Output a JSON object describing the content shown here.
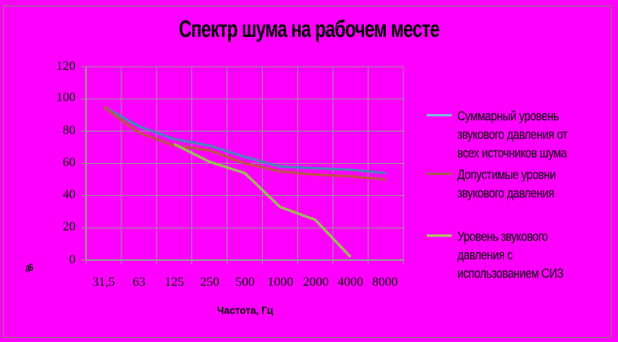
{
  "window": {
    "background": "#FF00FF",
    "border_color": "#85856F"
  },
  "title": "Спектр шума на рабочем месте",
  "y_axis": {
    "ticks": [
      "120",
      "100",
      "80",
      "60",
      "40",
      "20",
      "0"
    ],
    "unit_label": "дБ"
  },
  "x_axis": {
    "ticks": [
      "31,5",
      "63",
      "125",
      "250",
      "500",
      "1000",
      "2000",
      "4000",
      "8000"
    ],
    "title": "Частота, Гц"
  },
  "legend": {
    "items": [
      {
        "label": "Суммарный уровень звукового давления от всех источников шума",
        "lines": [
          "Суммарный уровень",
          "звукового давления  от",
          "всех источников шума"
        ],
        "key_color": "#7FB2D9"
      },
      {
        "label": "Допустимые уровни звукового давления",
        "lines": [
          "Допустимые уровни",
          "звукового давления",
          ""
        ],
        "key_color": "#A65A50"
      },
      {
        "label": "Уровень звукового давления с использованием СИЗ",
        "lines": [
          "Уровень звукового",
          "давления с",
          "использованием СИЗ"
        ],
        "key_color": "#ADBE6B"
      }
    ]
  },
  "chart_data": {
    "type": "line",
    "title": "Спектр шума на рабочем месте",
    "xlabel": "Частота, Гц",
    "ylabel": "дБ",
    "ylim": [
      0,
      120
    ],
    "y_step": 20,
    "grid": true,
    "legend_position": "right",
    "background_color": "#FF00FF",
    "gridline_color": "#969696",
    "categories": [
      "31,5",
      "63",
      "125",
      "250",
      "500",
      "1000",
      "2000",
      "4000",
      "8000"
    ],
    "series": [
      {
        "name": "Суммарный уровень звукового давления от всех источников шума",
        "color": "#4F81BD",
        "values": [
          95,
          83,
          75,
          71,
          64,
          58,
          57,
          56,
          54
        ]
      },
      {
        "name": "Допустимые уровни звукового давления",
        "color": "#C0504D",
        "values": [
          95,
          79,
          71,
          68,
          60,
          55,
          53,
          52,
          50
        ]
      },
      {
        "name": "Уровень звукового давления с использованием СИЗ",
        "color": "#9BBB59",
        "values": [
          null,
          null,
          72,
          61,
          54,
          33,
          25,
          2,
          null
        ]
      }
    ]
  }
}
